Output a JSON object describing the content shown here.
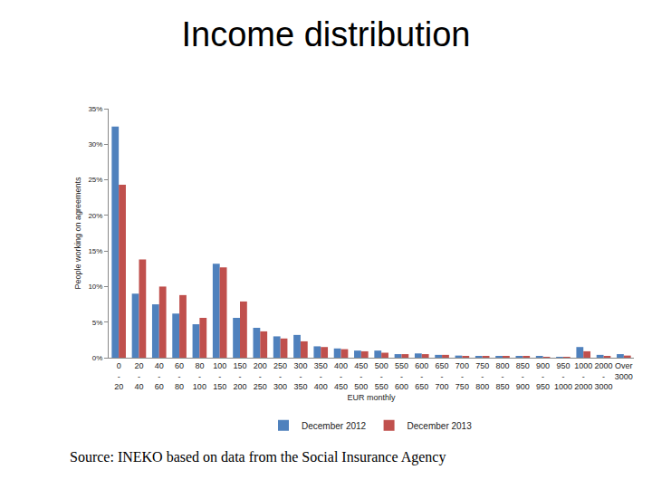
{
  "chart_data": {
    "type": "bar",
    "title": "Income distribution",
    "x_label": "EUR monthly",
    "y_label": "People working on agreements",
    "source": "Source: INEKO based on data from the Social Insurance Agency",
    "categories": [
      "0 - 20",
      "20 - 40",
      "40 - 60",
      "60 - 80",
      "80 - 100",
      "100 - 150",
      "150 - 200",
      "200 - 250",
      "250 - 300",
      "300 - 350",
      "350 - 400",
      "400 - 450",
      "450 - 500",
      "500 - 550",
      "550 - 600",
      "600 - 650",
      "650 - 700",
      "700 - 750",
      "750 - 800",
      "800 - 850",
      "850 - 900",
      "900 - 950",
      "950 - 1000",
      "1000 - 2000",
      "2000 - 3000",
      "Over 3000"
    ],
    "series": [
      {
        "name": "December 2012",
        "color": "#4f81bd",
        "values": [
          32.5,
          9.0,
          7.5,
          6.2,
          4.7,
          13.2,
          5.6,
          4.2,
          3.0,
          3.2,
          1.6,
          1.3,
          1.0,
          1.0,
          0.5,
          0.6,
          0.4,
          0.3,
          0.2,
          0.2,
          0.2,
          0.2,
          0.1,
          1.5,
          0.4,
          0.5
        ]
      },
      {
        "name": "December 2013",
        "color": "#c0504d",
        "values": [
          24.3,
          13.8,
          10.0,
          8.8,
          5.6,
          12.7,
          7.9,
          3.7,
          2.7,
          2.3,
          1.5,
          1.2,
          0.9,
          0.7,
          0.5,
          0.5,
          0.4,
          0.2,
          0.2,
          0.2,
          0.2,
          0.1,
          0.1,
          0.9,
          0.2,
          0.3
        ]
      }
    ],
    "ylim": [
      0,
      35
    ],
    "yticks": [
      {
        "value": 0,
        "label": "0%"
      },
      {
        "value": 5,
        "label": "5%"
      },
      {
        "value": 10,
        "label": "10%"
      },
      {
        "value": 15,
        "label": "15%"
      },
      {
        "value": 20,
        "label": "20%"
      },
      {
        "value": 25,
        "label": "25%"
      },
      {
        "value": 30,
        "label": "30%"
      },
      {
        "value": 35,
        "label": "35%"
      }
    ],
    "grid": false,
    "legend": "bottom"
  }
}
